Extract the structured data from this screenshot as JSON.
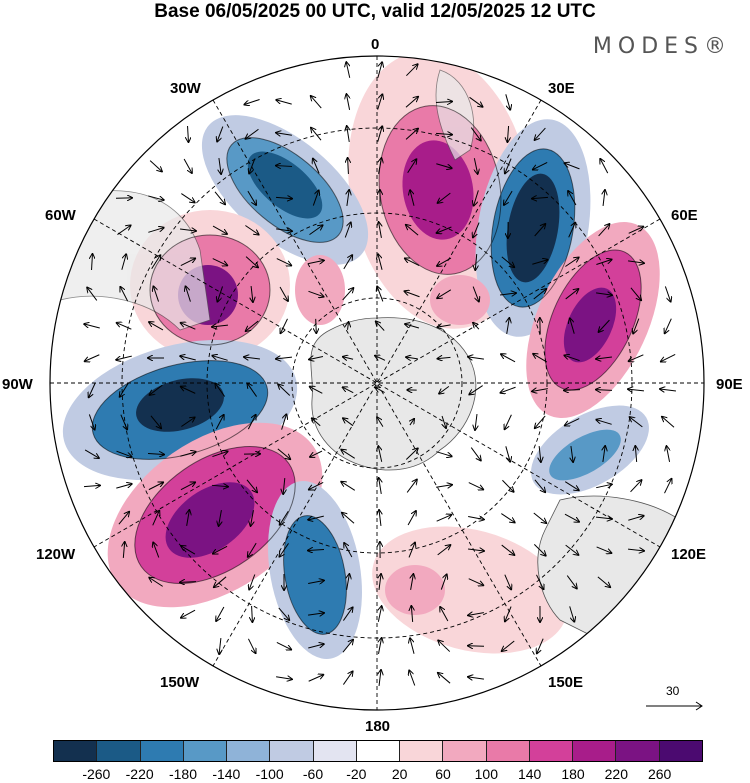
{
  "title": "Base 06/05/2025 00 UTC, valid 12/05/2025 12 UTC",
  "brand": "MODES®",
  "longitude_labels": {
    "l0": "0",
    "l30e": "30E",
    "l60e": "60E",
    "l90e": "90E",
    "l120e": "120E",
    "l150e": "150E",
    "l180": "180",
    "l150w": "150W",
    "l120w": "120W",
    "l90w": "90W",
    "l60w": "60W",
    "l30w": "30W"
  },
  "reference_vector_label": "30",
  "colorbar": {
    "ticks": [
      "-260",
      "-220",
      "-180",
      "-140",
      "-100",
      "-60",
      "-20",
      "20",
      "60",
      "100",
      "140",
      "180",
      "220",
      "260"
    ],
    "colors": [
      "#13304f",
      "#1b5a86",
      "#2e7bb1",
      "#5899c6",
      "#8fb3d8",
      "#c0cbe3",
      "#e3e4f1",
      "#ffffff",
      "#f9d6d9",
      "#f2a9bf",
      "#e97aa8",
      "#d3409a",
      "#a81d8a",
      "#7b1383",
      "#4b0a70"
    ]
  },
  "colors": {
    "land": "#e8e8e8",
    "border": "#000000"
  }
}
